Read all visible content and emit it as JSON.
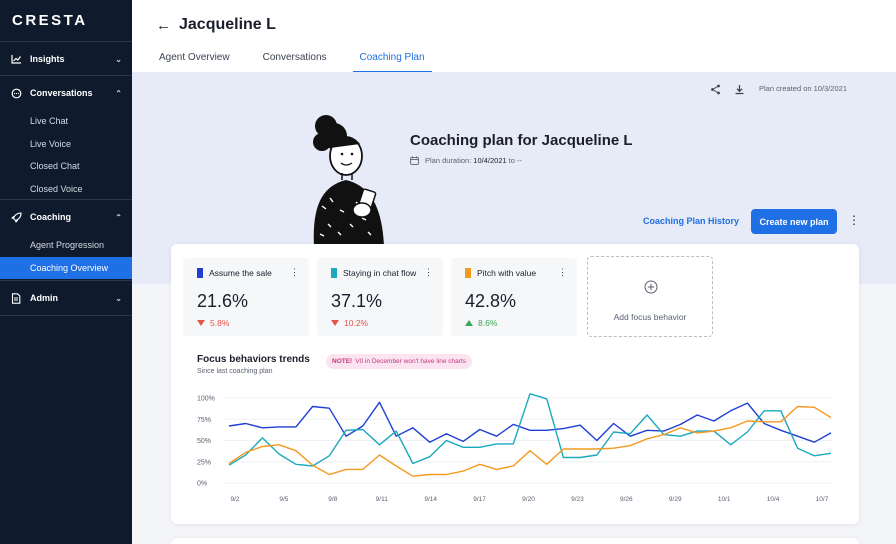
{
  "sidebar": {
    "logo": "CRESTA",
    "sections": [
      {
        "label": "Insights",
        "icon": "chart-line-icon",
        "items": []
      },
      {
        "label": "Conversations",
        "icon": "chat-bubble-icon",
        "items": [
          "Live Chat",
          "Live Voice",
          "Closed Chat",
          "Closed Voice"
        ]
      },
      {
        "label": "Coaching",
        "icon": "rocket-icon",
        "items": [
          "Agent Progression",
          "Coaching Overview"
        ]
      },
      {
        "label": "Admin",
        "icon": "document-icon",
        "items": []
      }
    ],
    "active_item": "Coaching Overview"
  },
  "header": {
    "agent_name": "Jacqueline L",
    "tabs": [
      "Agent Overview",
      "Conversations",
      "Coaching Plan"
    ],
    "active_tab": "Coaching Plan"
  },
  "banner": {
    "created": "Plan created on 10/3/2021",
    "title": "Coaching plan for Jacqueline L",
    "duration_label": "Plan duration:",
    "duration_value": "10/4/2021",
    "duration_to": "to --",
    "history_link": "Coaching Plan History",
    "new_plan_button": "Create new plan"
  },
  "metrics": [
    {
      "name": "Assume the sale",
      "value": "21.6%",
      "delta": "5.8%",
      "direction": "down",
      "color": "#1f3fd6"
    },
    {
      "name": "Staying in chat flow",
      "value": "37.1%",
      "delta": "10.2%",
      "direction": "down",
      "color": "#1aa9bd"
    },
    {
      "name": "Pitch with value",
      "value": "42.8%",
      "delta": "8.6%",
      "direction": "up",
      "color": "#f39a1e"
    }
  ],
  "add_focus": "Add focus behavior",
  "trends": {
    "title": "Focus behaviors trends",
    "subtitle": "Since last coaching plan",
    "note_label": "NOTE!",
    "note_text": "V0 in December won't have line charts"
  },
  "chart_data": {
    "type": "line",
    "x_ticks": [
      "9/2",
      "9/5",
      "9/8",
      "9/11",
      "9/14",
      "9/17",
      "9/20",
      "9/23",
      "9/26",
      "9/29",
      "10/1",
      "10/4",
      "10/7"
    ],
    "y_ticks": [
      "100%",
      "75%",
      "50%",
      "25%",
      "0%"
    ],
    "ylim": [
      0,
      100
    ],
    "n_points": 37,
    "series": [
      {
        "color": "#1f3fd6",
        "values": [
          67,
          70,
          65,
          66,
          66,
          90,
          88,
          55,
          67,
          95,
          55,
          65,
          48,
          58,
          49,
          63,
          55,
          69,
          62,
          62,
          64,
          68,
          50,
          70,
          55,
          62,
          61,
          69,
          80,
          73,
          85,
          94,
          70,
          62,
          55,
          48,
          59
        ]
      },
      {
        "color": "#1aa9bd",
        "values": [
          21,
          33,
          53,
          34,
          22,
          20,
          32,
          62,
          63,
          45,
          61,
          23,
          31,
          50,
          42,
          42,
          46,
          46,
          105,
          99,
          30,
          30,
          33,
          60,
          58,
          80,
          57,
          55,
          61,
          61,
          45,
          60,
          85,
          85,
          41,
          32,
          35
        ]
      },
      {
        "color": "#f39a1e",
        "values": [
          23,
          36,
          43,
          45,
          38,
          21,
          10,
          16,
          16,
          33,
          20,
          8,
          10,
          10,
          14,
          22,
          16,
          20,
          38,
          22,
          40,
          40,
          40,
          41,
          44,
          52,
          57,
          65,
          59,
          61,
          65,
          73,
          72,
          72,
          90,
          89,
          77
        ]
      }
    ]
  }
}
